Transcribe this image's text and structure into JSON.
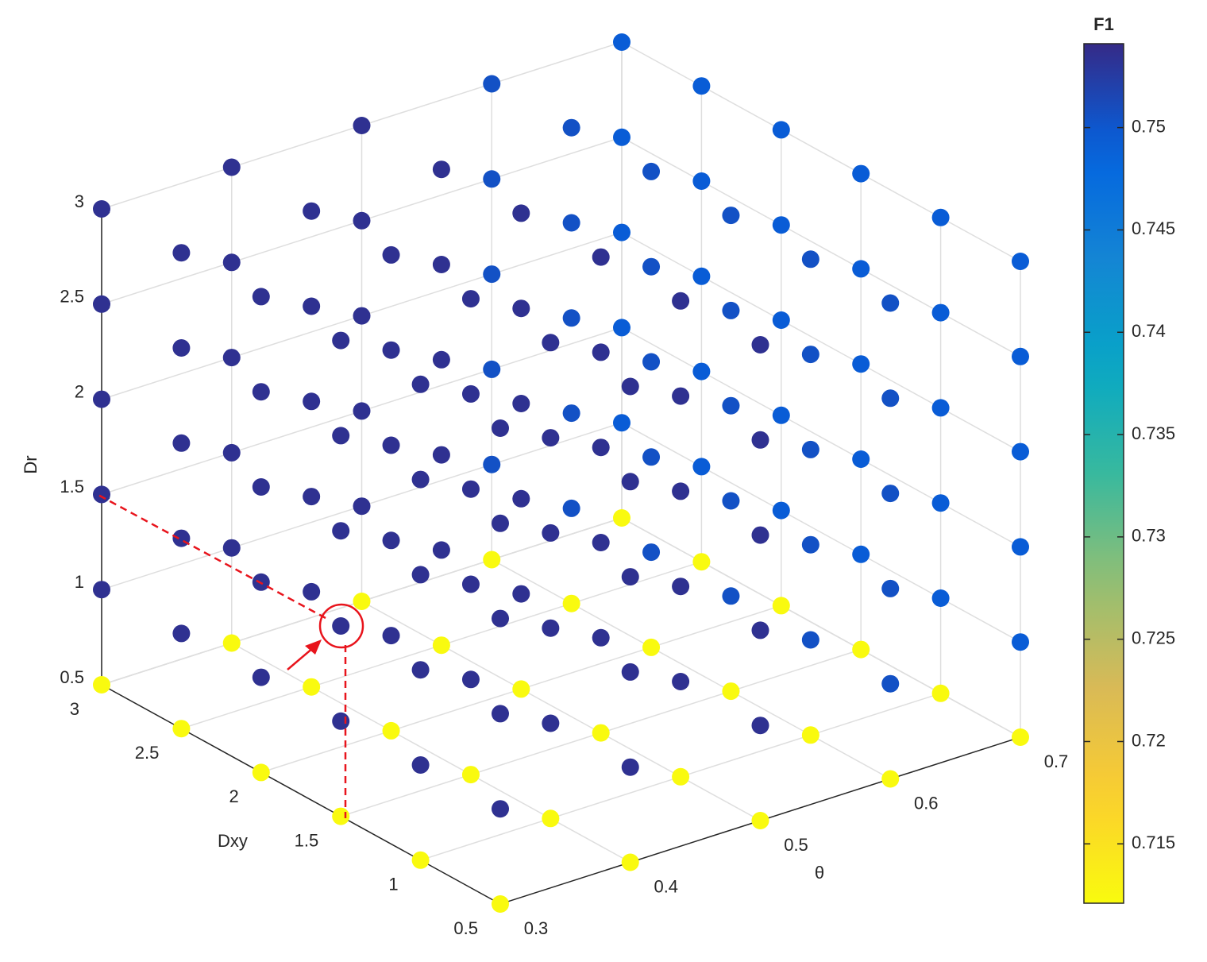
{
  "chart_data": {
    "type": "scatter3d",
    "xlabel": "θ",
    "ylabel": "Dxy",
    "zlabel": "Dr",
    "colorbar_label": "F1",
    "xlim": [
      0.3,
      0.7
    ],
    "ylim": [
      0.5,
      3
    ],
    "zlim": [
      0.5,
      3
    ],
    "xticks": [
      0.3,
      0.4,
      0.5,
      0.6,
      0.7
    ],
    "yticks": [
      0.5,
      1,
      1.5,
      2,
      2.5,
      3
    ],
    "zticks": [
      0.5,
      1,
      1.5,
      2,
      2.5,
      3
    ],
    "clim": [
      0.7121,
      0.7541
    ],
    "cticks": [
      0.715,
      0.72,
      0.725,
      0.73,
      0.735,
      0.74,
      0.745,
      0.75
    ],
    "colormap": "parula",
    "colormap_reversed": true,
    "grid": true,
    "x": [
      0.3,
      0.4,
      0.5,
      0.6,
      0.7,
      0.3,
      0.4,
      0.5,
      0.6,
      0.7,
      0.3,
      0.4,
      0.5,
      0.6,
      0.7,
      0.3,
      0.4,
      0.5,
      0.6,
      0.7,
      0.3,
      0.4,
      0.5,
      0.6,
      0.7,
      0.3,
      0.4,
      0.5,
      0.6,
      0.7,
      0.3,
      0.4,
      0.5,
      0.6,
      0.7,
      0.3,
      0.4,
      0.5,
      0.6,
      0.7,
      0.3,
      0.4,
      0.5,
      0.6,
      0.7,
      0.3,
      0.4,
      0.5,
      0.6,
      0.7,
      0.3,
      0.4,
      0.5,
      0.6,
      0.7,
      0.3,
      0.4,
      0.5,
      0.6,
      0.7,
      0.3,
      0.4,
      0.5,
      0.6,
      0.7,
      0.3,
      0.4,
      0.5,
      0.6,
      0.7,
      0.3,
      0.4,
      0.5,
      0.6,
      0.7,
      0.3,
      0.4,
      0.5,
      0.6,
      0.7,
      0.3,
      0.4,
      0.5,
      0.6,
      0.7,
      0.3,
      0.4,
      0.5,
      0.6,
      0.7,
      0.3,
      0.4,
      0.5,
      0.6,
      0.7,
      0.3,
      0.4,
      0.5,
      0.6,
      0.7,
      0.3,
      0.4,
      0.5,
      0.6,
      0.7,
      0.3,
      0.4,
      0.5,
      0.6,
      0.7,
      0.3,
      0.4,
      0.5,
      0.6,
      0.7,
      0.3,
      0.4,
      0.5,
      0.6,
      0.7,
      0.3,
      0.4,
      0.5,
      0.6,
      0.7,
      0.3,
      0.4,
      0.5,
      0.6,
      0.7,
      0.3,
      0.4,
      0.5,
      0.6,
      0.7,
      0.3,
      0.4,
      0.5,
      0.6,
      0.7,
      0.3,
      0.4,
      0.5,
      0.6,
      0.7,
      0.3,
      0.4,
      0.5,
      0.6,
      0.7,
      0.3,
      0.4,
      0.5,
      0.6,
      0.7,
      0.3,
      0.4,
      0.5,
      0.6,
      0.7,
      0.3,
      0.4,
      0.5,
      0.6,
      0.7,
      0.3,
      0.4,
      0.5,
      0.6,
      0.7,
      0.3,
      0.4,
      0.5,
      0.6,
      0.7,
      0.3,
      0.4,
      0.5,
      0.6,
      0.7
    ],
    "y": [
      0.5,
      0.5,
      0.5,
      0.5,
      0.5,
      1,
      1,
      1,
      1,
      1,
      1.5,
      1.5,
      1.5,
      1.5,
      1.5,
      2,
      2,
      2,
      2,
      2,
      2.5,
      2.5,
      2.5,
      2.5,
      2.5,
      3,
      3,
      3,
      3,
      3,
      0.5,
      0.5,
      0.5,
      0.5,
      0.5,
      1,
      1,
      1,
      1,
      1,
      1.5,
      1.5,
      1.5,
      1.5,
      1.5,
      2,
      2,
      2,
      2,
      2,
      2.5,
      2.5,
      2.5,
      2.5,
      2.5,
      3,
      3,
      3,
      3,
      3,
      0.5,
      0.5,
      0.5,
      0.5,
      0.5,
      1,
      1,
      1,
      1,
      1,
      1.5,
      1.5,
      1.5,
      1.5,
      1.5,
      2,
      2,
      2,
      2,
      2,
      2.5,
      2.5,
      2.5,
      2.5,
      2.5,
      3,
      3,
      3,
      3,
      3,
      0.5,
      0.5,
      0.5,
      0.5,
      0.5,
      1,
      1,
      1,
      1,
      1,
      1.5,
      1.5,
      1.5,
      1.5,
      1.5,
      2,
      2,
      2,
      2,
      2,
      2.5,
      2.5,
      2.5,
      2.5,
      2.5,
      3,
      3,
      3,
      3,
      3,
      0.5,
      0.5,
      0.5,
      0.5,
      0.5,
      1,
      1,
      1,
      1,
      1,
      1.5,
      1.5,
      1.5,
      1.5,
      1.5,
      2,
      2,
      2,
      2,
      2,
      2.5,
      2.5,
      2.5,
      2.5,
      2.5,
      3,
      3,
      3,
      3,
      3,
      0.5,
      0.5,
      0.5,
      0.5,
      0.5,
      1,
      1,
      1,
      1,
      1,
      1.5,
      1.5,
      1.5,
      1.5,
      1.5,
      2,
      2,
      2,
      2,
      2,
      2.5,
      2.5,
      2.5,
      2.5,
      2.5,
      3,
      3,
      3,
      3,
      3
    ],
    "z": [
      0.5,
      0.5,
      0.5,
      0.5,
      0.5,
      0.5,
      0.5,
      0.5,
      0.5,
      0.5,
      0.5,
      0.5,
      0.5,
      0.5,
      0.5,
      0.5,
      0.5,
      0.5,
      0.5,
      0.5,
      0.5,
      0.5,
      0.5,
      0.5,
      0.5,
      0.5,
      0.5,
      0.5,
      0.5,
      0.5,
      1,
      1,
      1,
      1,
      1,
      1,
      1,
      1,
      1,
      1,
      1,
      1,
      1,
      1,
      1,
      1,
      1,
      1,
      1,
      1,
      1,
      1,
      1,
      1,
      1,
      1,
      1,
      1,
      1,
      1,
      1.5,
      1.5,
      1.5,
      1.5,
      1.5,
      1.5,
      1.5,
      1.5,
      1.5,
      1.5,
      1.5,
      1.5,
      1.5,
      1.5,
      1.5,
      1.5,
      1.5,
      1.5,
      1.5,
      1.5,
      1.5,
      1.5,
      1.5,
      1.5,
      1.5,
      1.5,
      1.5,
      1.5,
      1.5,
      1.5,
      2,
      2,
      2,
      2,
      2,
      2,
      2,
      2,
      2,
      2,
      2,
      2,
      2,
      2,
      2,
      2,
      2,
      2,
      2,
      2,
      2,
      2,
      2,
      2,
      2,
      2,
      2,
      2,
      2,
      2,
      2.5,
      2.5,
      2.5,
      2.5,
      2.5,
      2.5,
      2.5,
      2.5,
      2.5,
      2.5,
      2.5,
      2.5,
      2.5,
      2.5,
      2.5,
      2.5,
      2.5,
      2.5,
      2.5,
      2.5,
      2.5,
      2.5,
      2.5,
      2.5,
      2.5,
      2.5,
      2.5,
      2.5,
      2.5,
      2.5,
      3,
      3,
      3,
      3,
      3,
      3,
      3,
      3,
      3,
      3,
      3,
      3,
      3,
      3,
      3,
      3,
      3,
      3,
      3,
      3,
      3,
      3,
      3,
      3,
      3,
      3,
      3,
      3,
      3,
      3
    ],
    "values": [
      0.7122,
      0.7122,
      0.7122,
      0.7122,
      0.7122,
      0.7122,
      0.7122,
      0.7122,
      0.7122,
      0.7122,
      0.7122,
      0.7122,
      0.7122,
      0.7122,
      0.7122,
      0.7122,
      0.7122,
      0.7122,
      0.7122,
      0.7122,
      0.7122,
      0.7122,
      0.7122,
      0.7122,
      0.7122,
      0.7122,
      0.7122,
      0.7122,
      0.7122,
      0.7122,
      0.7535,
      0.7535,
      0.7535,
      0.7505,
      0.7495,
      0.7535,
      0.7535,
      0.7535,
      0.7505,
      0.7495,
      0.7535,
      0.7535,
      0.7535,
      0.7505,
      0.7495,
      0.7535,
      0.7535,
      0.7535,
      0.7505,
      0.7495,
      0.7535,
      0.7535,
      0.7535,
      0.7505,
      0.7495,
      0.7535,
      0.7535,
      0.7535,
      0.7505,
      0.7495,
      0.7535,
      0.7535,
      0.7535,
      0.7505,
      0.7495,
      0.7535,
      0.7535,
      0.7535,
      0.7505,
      0.7495,
      0.7535,
      0.7535,
      0.7535,
      0.7505,
      0.7495,
      0.7535,
      0.7535,
      0.7535,
      0.7505,
      0.7495,
      0.7535,
      0.7535,
      0.7535,
      0.7505,
      0.7495,
      0.7535,
      0.7535,
      0.7535,
      0.7505,
      0.7495,
      0.7535,
      0.7535,
      0.7535,
      0.7505,
      0.7495,
      0.7535,
      0.7535,
      0.7535,
      0.7505,
      0.7495,
      0.7535,
      0.7535,
      0.7535,
      0.7505,
      0.7495,
      0.7535,
      0.7535,
      0.7535,
      0.7505,
      0.7495,
      0.7535,
      0.7535,
      0.7535,
      0.7505,
      0.7495,
      0.7535,
      0.7535,
      0.7535,
      0.7505,
      0.7495,
      0.7535,
      0.7535,
      0.7535,
      0.7505,
      0.7495,
      0.7535,
      0.7535,
      0.7535,
      0.7505,
      0.7495,
      0.7535,
      0.7535,
      0.7535,
      0.7505,
      0.7495,
      0.7535,
      0.7535,
      0.7535,
      0.7505,
      0.7495,
      0.7535,
      0.7535,
      0.7535,
      0.7505,
      0.7495,
      0.7535,
      0.7535,
      0.7535,
      0.7505,
      0.7495,
      0.7535,
      0.7535,
      0.7535,
      0.7505,
      0.7495,
      0.7535,
      0.7535,
      0.7535,
      0.7505,
      0.7495,
      0.7535,
      0.7535,
      0.7535,
      0.7505,
      0.7495,
      0.7535,
      0.7535,
      0.7535,
      0.7505,
      0.7495,
      0.7535,
      0.7535,
      0.7535,
      0.7505,
      0.7495,
      0.7535,
      0.7535,
      0.7535,
      0.7505,
      0.7495
    ]
  }
}
